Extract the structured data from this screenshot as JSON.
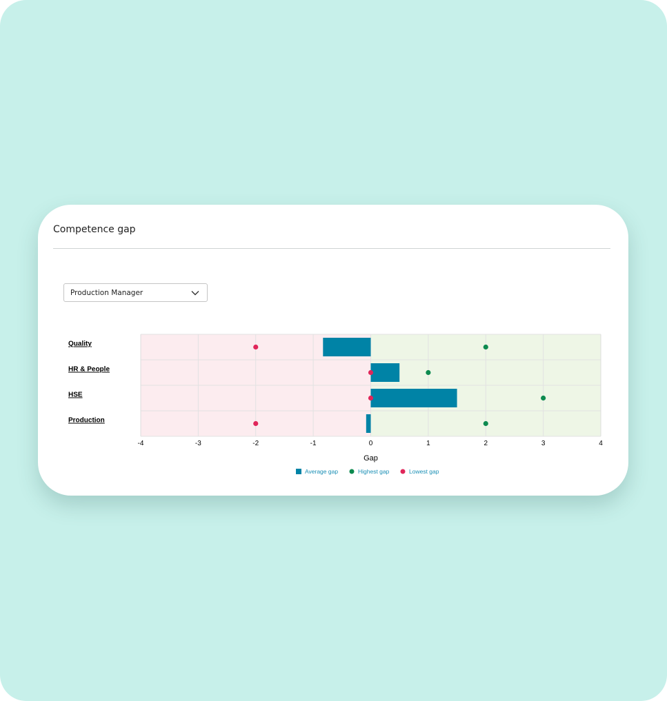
{
  "card": {
    "title": "Competence gap",
    "select": {
      "value": "Production Manager"
    }
  },
  "colors": {
    "background": "#c7f0ea",
    "negative_zone": "#fcecef",
    "positive_zone": "#eef6e6",
    "average_bar": "#0083a6",
    "highest_dot": "#0d8a4f",
    "lowest_dot": "#e0265a",
    "legend_text": "#1a8fb5"
  },
  "chart_data": {
    "type": "bar",
    "orientation": "horizontal",
    "categories": [
      "Quality",
      "HR & People",
      "HSE",
      "Production"
    ],
    "series": [
      {
        "name": "Average gap",
        "kind": "bar",
        "values": [
          -0.83,
          0.5,
          1.5,
          -0.08
        ]
      },
      {
        "name": "Highest gap",
        "kind": "point",
        "values": [
          2,
          1,
          3,
          2
        ]
      },
      {
        "name": "Lowest gap",
        "kind": "point",
        "values": [
          -2,
          0,
          0,
          -2
        ]
      }
    ],
    "xlabel": "Gap",
    "xlim": [
      -4,
      4
    ],
    "xticks": [
      "-4",
      "-3",
      "-2",
      "-1",
      "0",
      "1",
      "2",
      "3",
      "4"
    ],
    "grid": true,
    "legend": "bottom"
  }
}
